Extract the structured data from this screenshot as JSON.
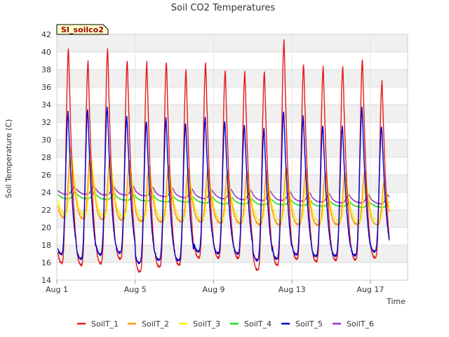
{
  "chart_data": {
    "type": "line",
    "title": "Soil CO2 Temperatures",
    "site_label": "SI_soilco2",
    "xlabel": "Time",
    "ylabel": "Soil Temperature (C)",
    "ylim": [
      14,
      42
    ],
    "yticks": [
      14,
      16,
      18,
      20,
      22,
      24,
      26,
      28,
      30,
      32,
      34,
      36,
      38,
      40,
      42
    ],
    "xlim": [
      1,
      18.9
    ],
    "xticks": [
      {
        "day": 1,
        "label": "Aug 1"
      },
      {
        "day": 5,
        "label": "Aug 5"
      },
      {
        "day": 9,
        "label": "Aug 9"
      },
      {
        "day": 13,
        "label": "Aug 13"
      },
      {
        "day": 17,
        "label": "Aug 17"
      }
    ],
    "grid": true,
    "legend_position": "bottom",
    "series": [
      {
        "name": "SoilT_1",
        "color": "#e31a1c",
        "peaks": [
          40.5,
          39.0,
          40.3,
          39.0,
          38.8,
          38.9,
          38.0,
          38.9,
          38.0,
          37.8,
          37.9,
          41.3,
          38.6,
          38.3,
          38.3,
          39.2,
          36.7
        ],
        "mins": [
          16.0,
          15.8,
          16.0,
          16.5,
          15.0,
          15.5,
          15.7,
          16.5,
          16.5,
          16.5,
          15.2,
          15.8,
          16.5,
          16.2,
          16.3,
          16.3,
          16.5
        ]
      },
      {
        "name": "SoilT_2",
        "color": "#ff9900",
        "peaks": [
          29.0,
          28.7,
          28.0,
          27.5,
          27.0,
          27.0,
          26.8,
          26.7,
          26.5,
          26.4,
          26.3,
          26.8,
          26.5,
          26.3,
          26.2,
          26.5,
          25.3
        ],
        "mins": [
          21.2,
          21.1,
          21.0,
          20.9,
          20.7,
          20.6,
          20.6,
          20.6,
          20.5,
          20.5,
          20.4,
          20.4,
          20.4,
          20.3,
          20.3,
          20.3,
          20.3
        ]
      },
      {
        "name": "SoilT_3",
        "color": "#ffee00",
        "peaks": [
          28.0,
          27.7,
          27.0,
          26.5,
          26.0,
          26.0,
          25.8,
          25.7,
          25.5,
          25.4,
          25.3,
          25.8,
          25.5,
          25.3,
          25.2,
          25.5,
          24.5
        ],
        "mins": [
          21.6,
          21.5,
          21.4,
          21.3,
          21.1,
          21.0,
          21.0,
          21.0,
          20.9,
          20.9,
          20.8,
          20.8,
          20.8,
          20.7,
          20.7,
          20.7,
          20.7
        ]
      },
      {
        "name": "SoilT_4",
        "color": "#22dd22",
        "peaks": [
          24.0,
          24.0,
          23.9,
          23.8,
          23.7,
          23.6,
          23.5,
          23.5,
          23.4,
          23.3,
          23.2,
          23.2,
          23.1,
          23.0,
          23.0,
          22.9,
          22.9
        ],
        "mins": [
          23.3,
          23.3,
          23.2,
          23.1,
          23.0,
          22.9,
          22.9,
          22.8,
          22.7,
          22.7,
          22.6,
          22.6,
          22.5,
          22.4,
          22.4,
          22.3,
          22.3
        ]
      },
      {
        "name": "SoilT_5",
        "color": "#0000cc",
        "peaks": [
          33.2,
          33.5,
          33.7,
          32.6,
          32.1,
          32.4,
          32.0,
          32.6,
          32.2,
          31.8,
          31.3,
          33.3,
          32.6,
          31.6,
          31.5,
          33.7,
          31.6
        ],
        "mins": [
          17.0,
          16.5,
          17.0,
          17.2,
          16.0,
          16.3,
          16.2,
          17.2,
          17.0,
          17.0,
          16.3,
          16.5,
          17.0,
          16.8,
          16.8,
          16.8,
          17.2
        ]
      },
      {
        "name": "SoilT_6",
        "color": "#9933cc",
        "peaks": [
          24.6,
          24.7,
          24.7,
          24.7,
          24.6,
          24.5,
          24.4,
          24.3,
          24.3,
          24.2,
          24.1,
          24.1,
          24.0,
          23.9,
          23.8,
          23.8,
          23.7
        ],
        "mins": [
          23.8,
          23.8,
          23.7,
          23.7,
          23.6,
          23.5,
          23.4,
          23.3,
          23.3,
          23.2,
          23.1,
          23.1,
          23.0,
          22.9,
          22.8,
          22.8,
          22.7
        ]
      }
    ]
  }
}
